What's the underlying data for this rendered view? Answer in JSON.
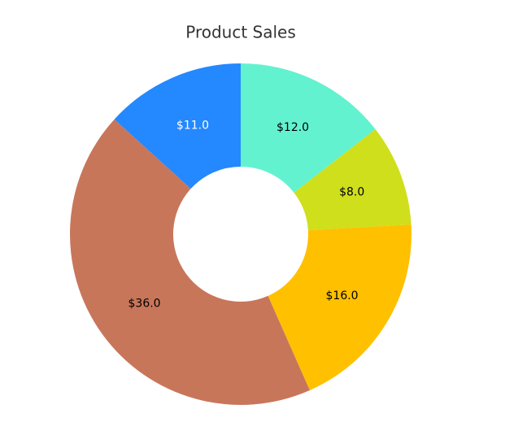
{
  "chart_data": {
    "type": "donut",
    "title": "Product Sales",
    "values": [
      12,
      8,
      16,
      36,
      11
    ],
    "value_labels": [
      "$12.0",
      "$8.0",
      "$16.0",
      "$36.0",
      "$11.0"
    ],
    "colors": [
      "#63f2d0",
      "#cfdf1c",
      "#ffc000",
      "#c8765a",
      "#2488ff"
    ],
    "label_colors": [
      "#000000",
      "#000000",
      "#000000",
      "#000000",
      "#ffffff"
    ]
  }
}
